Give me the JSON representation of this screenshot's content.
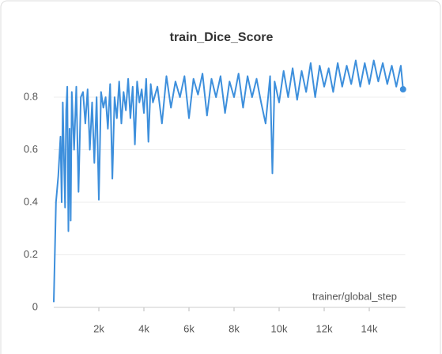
{
  "chart_data": {
    "type": "line",
    "title": "train_Dice_Score",
    "x_label": "trainer/global_step",
    "x": [
      0,
      100,
      200,
      300,
      350,
      400,
      500,
      550,
      600,
      650,
      700,
      750,
      800,
      900,
      1000,
      1100,
      1200,
      1300,
      1400,
      1500,
      1600,
      1700,
      1800,
      1900,
      2000,
      2100,
      2200,
      2300,
      2400,
      2500,
      2600,
      2700,
      2800,
      2900,
      3000,
      3100,
      3200,
      3300,
      3400,
      3500,
      3600,
      3700,
      3800,
      3900,
      4000,
      4100,
      4200,
      4300,
      4400,
      4600,
      4800,
      5000,
      5200,
      5400,
      5600,
      5800,
      6000,
      6200,
      6400,
      6600,
      6800,
      7000,
      7200,
      7400,
      7600,
      7800,
      8000,
      8200,
      8400,
      8600,
      8800,
      9000,
      9200,
      9400,
      9600,
      9700,
      9800,
      10000,
      10200,
      10400,
      10600,
      10800,
      11000,
      11200,
      11400,
      11600,
      11800,
      12000,
      12200,
      12400,
      12600,
      12800,
      13000,
      13200,
      13400,
      13600,
      13800,
      14000,
      14200,
      14400,
      14600,
      14800,
      15000,
      15200,
      15400,
      15500
    ],
    "series": [
      {
        "name": "train_Dice_Score",
        "color": "#3d8fdc",
        "values": [
          0.02,
          0.4,
          0.5,
          0.65,
          0.4,
          0.78,
          0.38,
          0.75,
          0.84,
          0.29,
          0.68,
          0.33,
          0.82,
          0.6,
          0.84,
          0.44,
          0.8,
          0.82,
          0.7,
          0.83,
          0.6,
          0.78,
          0.55,
          0.8,
          0.41,
          0.82,
          0.76,
          0.8,
          0.68,
          0.85,
          0.49,
          0.8,
          0.72,
          0.86,
          0.7,
          0.82,
          0.75,
          0.87,
          0.72,
          0.84,
          0.62,
          0.86,
          0.78,
          0.83,
          0.74,
          0.87,
          0.63,
          0.85,
          0.78,
          0.84,
          0.7,
          0.88,
          0.76,
          0.86,
          0.8,
          0.88,
          0.72,
          0.87,
          0.81,
          0.89,
          0.73,
          0.87,
          0.8,
          0.88,
          0.74,
          0.86,
          0.8,
          0.89,
          0.76,
          0.88,
          0.8,
          0.87,
          0.78,
          0.7,
          0.88,
          0.51,
          0.86,
          0.78,
          0.9,
          0.8,
          0.91,
          0.79,
          0.9,
          0.82,
          0.93,
          0.8,
          0.92,
          0.84,
          0.91,
          0.82,
          0.93,
          0.84,
          0.92,
          0.85,
          0.94,
          0.84,
          0.93,
          0.85,
          0.94,
          0.86,
          0.93,
          0.85,
          0.92,
          0.84,
          0.92,
          0.83
        ]
      }
    ],
    "xlim": [
      0,
      15600
    ],
    "ylim": [
      0,
      1
    ],
    "xticks": [
      {
        "value": 2000,
        "label": "2k"
      },
      {
        "value": 4000,
        "label": "4k"
      },
      {
        "value": 6000,
        "label": "6k"
      },
      {
        "value": 8000,
        "label": "8k"
      },
      {
        "value": 10000,
        "label": "10k"
      },
      {
        "value": 12000,
        "label": "12k"
      },
      {
        "value": 14000,
        "label": "14k"
      }
    ],
    "yticks": [
      0,
      0.2,
      0.4,
      0.6,
      0.8
    ],
    "grid": true
  }
}
